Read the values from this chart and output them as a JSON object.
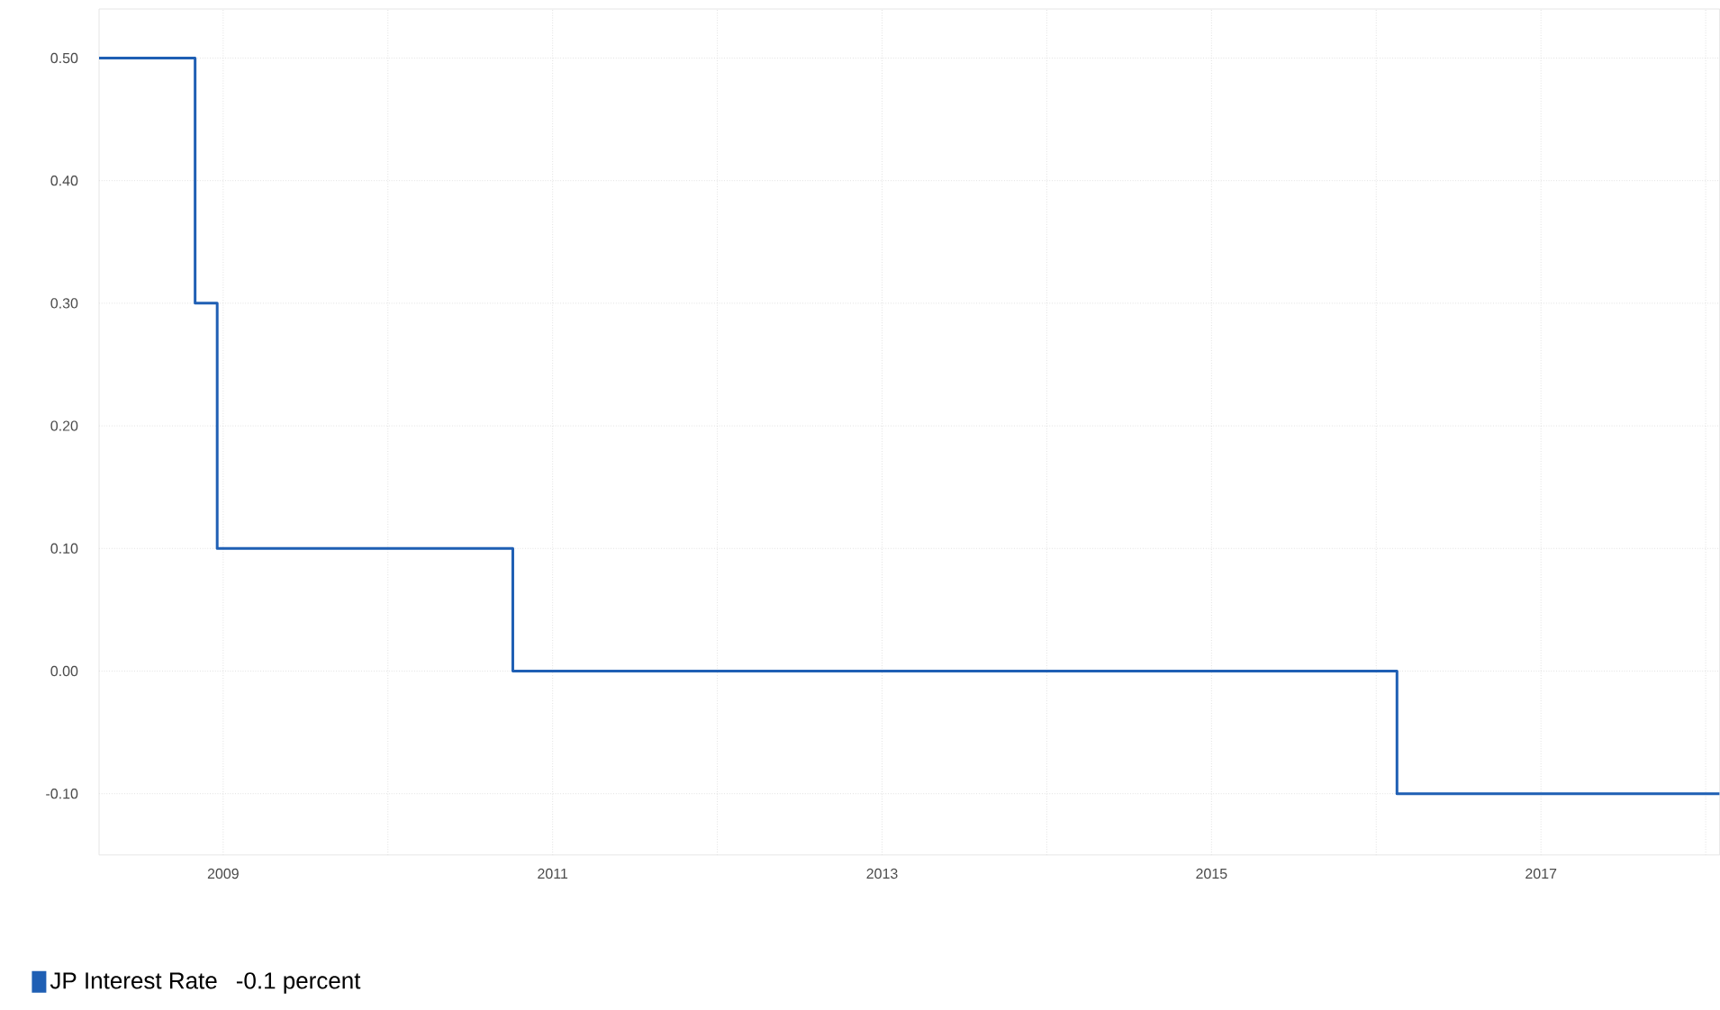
{
  "chart_data": {
    "type": "step",
    "x": [
      "2008-04",
      "2008-10-31",
      "2008-12-19",
      "2010-10-05",
      "2016-02-16",
      "2018-02"
    ],
    "series": [
      {
        "name": "JP Interest Rate",
        "color": "#1f5fb4",
        "values": [
          0.5,
          0.3,
          0.1,
          0,
          -0.1,
          -0.1
        ]
      }
    ],
    "xlim": [
      "2008-04",
      "2018-02"
    ],
    "xticks": [
      "2009",
      {
        "value": "2010",
        "label": null
      },
      "2011",
      {
        "value": "2012",
        "label": null
      },
      "2013",
      {
        "value": "2014",
        "label": null
      },
      "2015",
      {
        "value": "2016",
        "label": null
      },
      "2017",
      {
        "value": "2018",
        "label": null
      }
    ],
    "ylim": [
      -0.15,
      0.54
    ],
    "yticks": [
      {
        "value": -0.1,
        "label": "-0.10"
      },
      {
        "value": 0,
        "label": "0.00"
      },
      {
        "value": 0.1,
        "label": "0.10"
      },
      {
        "value": 0.2,
        "label": "0.20"
      },
      {
        "value": 0.3,
        "label": "0.30"
      },
      {
        "value": 0.4,
        "label": "0.40"
      },
      {
        "value": 0.5,
        "label": "0.50"
      }
    ],
    "grid": true,
    "legend": "bottom left",
    "annotations": [
      "-0.1 percent"
    ]
  }
}
